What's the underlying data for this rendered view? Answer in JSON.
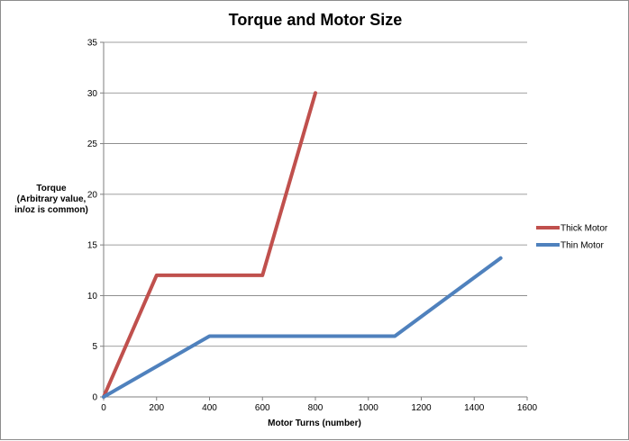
{
  "chart_data": {
    "type": "line",
    "title": "Torque and Motor Size",
    "xlabel": "Motor Turns (number)",
    "ylabel_lines": [
      "Torque",
      "(Arbitrary value,",
      "in/oz is common)"
    ],
    "xlim": [
      0,
      1600
    ],
    "ylim": [
      0,
      35
    ],
    "x_ticks": [
      0,
      200,
      400,
      600,
      800,
      1000,
      1200,
      1400,
      1600
    ],
    "y_ticks": [
      0,
      5,
      10,
      15,
      20,
      25,
      30,
      35
    ],
    "grid": "horizontal",
    "legend_position": "right",
    "series": [
      {
        "name": "Thick Motor",
        "color": "#c0504d",
        "points": [
          [
            0,
            0
          ],
          [
            200,
            12
          ],
          [
            600,
            12
          ],
          [
            800,
            30
          ]
        ]
      },
      {
        "name": "Thin Motor",
        "color": "#4f81bd",
        "points": [
          [
            0,
            0
          ],
          [
            400,
            6
          ],
          [
            1100,
            6
          ],
          [
            1500,
            13.7
          ]
        ]
      }
    ]
  }
}
